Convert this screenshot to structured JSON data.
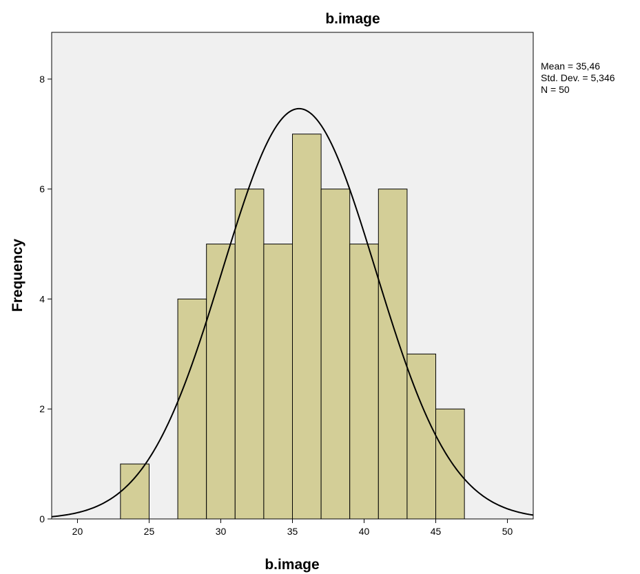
{
  "chart_data": {
    "type": "bar",
    "title": "b.image",
    "xlabel": "b.image",
    "ylabel": "Frequency",
    "bin_width": 2,
    "bins": [
      {
        "x_start": 23,
        "x_end": 25,
        "value": 1
      },
      {
        "x_start": 27,
        "x_end": 29,
        "value": 4
      },
      {
        "x_start": 29,
        "x_end": 31,
        "value": 5
      },
      {
        "x_start": 31,
        "x_end": 33,
        "value": 6
      },
      {
        "x_start": 33,
        "x_end": 35,
        "value": 5
      },
      {
        "x_start": 35,
        "x_end": 37,
        "value": 7
      },
      {
        "x_start": 37,
        "x_end": 39,
        "value": 6
      },
      {
        "x_start": 39,
        "x_end": 41,
        "value": 5
      },
      {
        "x_start": 41,
        "x_end": 43,
        "value": 6
      },
      {
        "x_start": 43,
        "x_end": 45,
        "value": 3
      },
      {
        "x_start": 45,
        "x_end": 47,
        "value": 2
      }
    ],
    "xlim": [
      18.2,
      51.8
    ],
    "ylim": [
      0,
      8.85
    ],
    "x_ticks": [
      20,
      25,
      30,
      35,
      40,
      45,
      50
    ],
    "y_ticks": [
      0,
      2,
      4,
      6,
      8
    ],
    "normal_curve": {
      "mean": 35.46,
      "std_dev": 5.346,
      "n": 50
    },
    "stats_text": [
      "Mean = 35,46",
      "Std. Dev. = 5,346",
      "N = 50"
    ],
    "colors": {
      "bar_fill": "#d3ce97",
      "bar_stroke": "#000000",
      "plot_background": "#f0f0f0",
      "curve": "#000000"
    },
    "grid": false
  }
}
